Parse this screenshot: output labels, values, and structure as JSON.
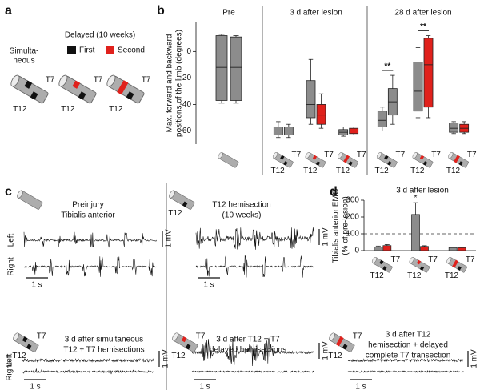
{
  "panel_labels": {
    "a": "a",
    "b": "b",
    "c": "c",
    "d": "d"
  },
  "segment_labels": {
    "rostral": "T7",
    "caudal": "T12"
  },
  "panel_a": {
    "simultaneous": [
      "Simulta-",
      "neous"
    ],
    "delayed": "Delayed (10 weeks)",
    "first": "First",
    "second": "Second"
  },
  "panel_c": {
    "side_labels": [
      "Left",
      "Right"
    ],
    "scale_mv": "1 mV",
    "scale_s": "1 s",
    "titles": [
      [
        "Preinjury",
        "Tibialis anterior"
      ],
      [
        "T12 hemisection",
        "(10 weeks)"
      ],
      [
        "3 d after simultaneous",
        "T12 + T7 hemisections"
      ],
      [
        "3 d after T12 + T7",
        "delayed hemisections"
      ],
      [
        "3 d after T12",
        "hemisection + delayed",
        "complete T7 transection"
      ]
    ]
  },
  "chart_data": [
    {
      "type": "box",
      "y_label": [
        "Max. forward and backward",
        "positions of the limb (degrees)"
      ],
      "ylim": [
        -70,
        22
      ],
      "yticks": [
        0,
        -20,
        -40,
        -60
      ],
      "groups": [
        {
          "label": "Pre",
          "boxes": [
            {
              "color": "#8c8c8c",
              "whisker_low": -39,
              "q1": -37,
              "median": -12,
              "q3": 12,
              "whisker_high": 13
            },
            {
              "color": "#8c8c8c",
              "whisker_low": -39,
              "q1": -37,
              "median": -12,
              "q3": 11,
              "whisker_high": 12
            }
          ]
        },
        {
          "label": "3 d after lesion",
          "boxes": [
            {
              "color": "#8c8c8c",
              "whisker_low": -65,
              "q1": -63,
              "median": -60,
              "q3": -57,
              "whisker_high": -53
            },
            {
              "color": "#8c8c8c",
              "whisker_low": -65,
              "q1": -63,
              "median": -60,
              "q3": -57,
              "whisker_high": -55
            },
            {
              "color": "#8c8c8c",
              "whisker_low": -55,
              "q1": -50,
              "median": -40,
              "q3": -22,
              "whisker_high": -6
            },
            {
              "color": "#e0211c",
              "whisker_low": -58,
              "q1": -55,
              "median": -48,
              "q3": -40,
              "whisker_high": -32
            },
            {
              "color": "#8c8c8c",
              "whisker_low": -64,
              "q1": -63,
              "median": -61,
              "q3": -59,
              "whisker_high": -57
            },
            {
              "color": "#e0211c",
              "whisker_low": -63,
              "q1": -62,
              "median": -60,
              "q3": -58,
              "whisker_high": -57
            }
          ]
        },
        {
          "label": "28 d after lesion",
          "boxes": [
            {
              "color": "#8c8c8c",
              "whisker_low": -60,
              "q1": -57,
              "median": -52,
              "q3": -45,
              "whisker_high": -42
            },
            {
              "color": "#8c8c8c",
              "whisker_low": -55,
              "q1": -48,
              "median": -38,
              "q3": -28,
              "whisker_high": -18
            },
            {
              "color": "#8c8c8c",
              "whisker_low": -50,
              "q1": -45,
              "median": -30,
              "q3": -8,
              "whisker_high": 3
            },
            {
              "color": "#e0211c",
              "whisker_low": -50,
              "q1": -42,
              "median": -10,
              "q3": 10,
              "whisker_high": 12
            },
            {
              "color": "#8c8c8c",
              "whisker_low": -62,
              "q1": -61,
              "median": -58,
              "q3": -54,
              "whisker_high": -53
            },
            {
              "color": "#e0211c",
              "whisker_low": -62,
              "q1": -61,
              "median": -58,
              "q3": -55,
              "whisker_high": -53
            }
          ]
        }
      ],
      "annotations": [
        "**",
        "**"
      ]
    },
    {
      "type": "bar",
      "title": "3 d after lesion",
      "y_label": [
        "Tibialis anterior EMG",
        "(% of pre-lesion)"
      ],
      "ylim": [
        0,
        300
      ],
      "yticks": [
        0,
        100,
        200,
        300
      ],
      "reference_line": 100,
      "categories": [
        null,
        null,
        null
      ],
      "series": [
        {
          "color": "#8c8c8c",
          "values": [
            22,
            215,
            18
          ],
          "errors": [
            5,
            70,
            3
          ]
        },
        {
          "color": "#e0211c",
          "values": [
            30,
            25,
            17
          ],
          "errors": [
            6,
            4,
            3
          ]
        }
      ],
      "annotations": [
        "*"
      ]
    }
  ]
}
